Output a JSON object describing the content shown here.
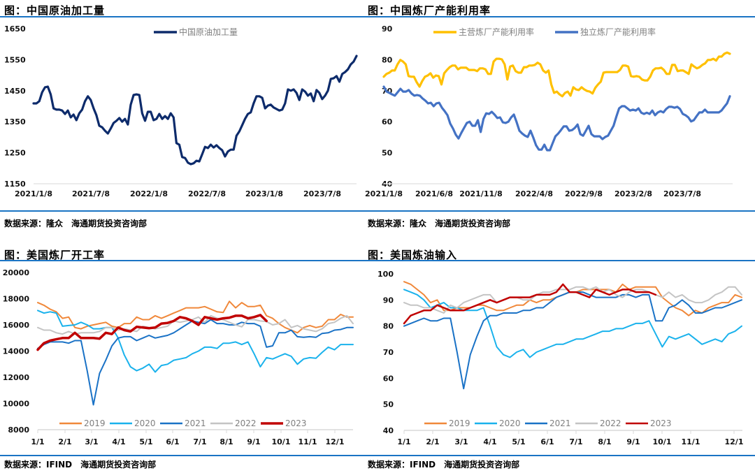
{
  "panels": [
    {
      "title": "图：中国原油加工量",
      "source": "数据来源：隆众　海通期货投资咨询部"
    },
    {
      "title": "图：中国炼厂产能利用率",
      "source": "数据来源：隆众　海通期货投资咨询部"
    },
    {
      "title": "图：美国炼厂开工率",
      "source": "数据来源：IFIND　海通期货投资咨询部"
    },
    {
      "title": "图：美国炼油输入",
      "source": "数据来源：IFIND　海通期货投资咨询部"
    }
  ],
  "chart_data": [
    {
      "type": "line",
      "title": "中国原油加工量",
      "xlabel": "",
      "ylabel": "",
      "ylim": [
        1150,
        1650
      ],
      "yticks": [
        "1650",
        "1550",
        "1450",
        "1350",
        "1250",
        "1150"
      ],
      "xticks": [
        "2021/1/8",
        "2021/7/8",
        "2022/1/8",
        "2022/7/8",
        "2023/1/8",
        "2023/7/8"
      ],
      "grid": false,
      "legend_position": "top-center",
      "series": [
        {
          "name": "中国原油加工量",
          "color": "#0d2b6b",
          "values": [
            1409,
            1409,
            1416,
            1445,
            1461,
            1463,
            1438,
            1393,
            1389,
            1389,
            1386,
            1375,
            1386,
            1364,
            1373,
            1355,
            1377,
            1389,
            1416,
            1432,
            1420,
            1393,
            1371,
            1337,
            1332,
            1321,
            1312,
            1328,
            1346,
            1353,
            1362,
            1350,
            1359,
            1341,
            1405,
            1436,
            1438,
            1436,
            1377,
            1353,
            1382,
            1382,
            1355,
            1359,
            1375,
            1359,
            1368,
            1359,
            1377,
            1364,
            1281,
            1276,
            1236,
            1233,
            1218,
            1213,
            1216,
            1224,
            1222,
            1245,
            1269,
            1265,
            1276,
            1267,
            1274,
            1265,
            1258,
            1238,
            1254,
            1260,
            1260,
            1305,
            1319,
            1339,
            1359,
            1375,
            1380,
            1409,
            1432,
            1432,
            1427,
            1393,
            1402,
            1405,
            1396,
            1391,
            1386,
            1389,
            1409,
            1454,
            1450,
            1454,
            1443,
            1420,
            1454,
            1447,
            1434,
            1441,
            1416,
            1452,
            1443,
            1423,
            1434,
            1450,
            1488,
            1490,
            1497,
            1479,
            1504,
            1510,
            1519,
            1535,
            1544,
            1562
          ]
        }
      ]
    },
    {
      "type": "line",
      "title": "中国炼厂产能利用率",
      "xlabel": "",
      "ylabel": "",
      "ylim": [
        40,
        90
      ],
      "yticks": [
        "90",
        "80",
        "70",
        "60",
        "50",
        "40"
      ],
      "xticks": [
        "2021/1/8",
        "2021/6/8",
        "2021/11/8",
        "2022/4/8",
        "2022/9/8",
        "2023/2/8",
        "2023/7/8"
      ],
      "grid": false,
      "legend_position": "top-center",
      "series": [
        {
          "name": "主营炼厂产能利用率",
          "color": "#ffc000",
          "values": [
            74.5,
            75.4,
            75.8,
            76.5,
            76.5,
            78.5,
            79.9,
            79.4,
            78.5,
            74.7,
            74.5,
            74.5,
            72.7,
            71.3,
            73.1,
            74.5,
            74.9,
            75.6,
            74.2,
            74.9,
            74.7,
            72.0,
            75.6,
            76.7,
            77.6,
            78.1,
            78.1,
            76.9,
            77.4,
            77.4,
            77.4,
            76.7,
            76.7,
            76.7,
            76.3,
            77.2,
            77.2,
            76.9,
            75.4,
            75.4,
            79.4,
            80.3,
            80.3,
            80.1,
            78.5,
            73.6,
            77.8,
            78.1,
            76.3,
            75.8,
            75.8,
            77.6,
            77.6,
            78.1,
            78.1,
            78.3,
            79.0,
            78.5,
            76.5,
            75.8,
            76.5,
            72.0,
            69.3,
            69.7,
            68.8,
            68.2,
            69.3,
            69.7,
            68.4,
            71.1,
            70.4,
            70.2,
            71.1,
            70.4,
            69.9,
            69.7,
            69.1,
            70.9,
            72.0,
            72.9,
            75.8,
            76.0,
            76.0,
            76.0,
            76.0,
            76.0,
            76.7,
            78.1,
            78.1,
            77.8,
            74.7,
            74.5,
            74.7,
            74.5,
            73.6,
            73.3,
            73.3,
            74.5,
            76.5,
            77.2,
            77.2,
            77.4,
            76.7,
            75.4,
            75.4,
            78.3,
            78.3,
            76.3,
            76.5,
            76.5,
            76.0,
            75.4,
            78.5,
            77.8,
            77.2,
            77.6,
            78.3,
            78.8,
            79.9,
            79.9,
            80.3,
            79.7,
            81.0,
            81.0,
            81.9,
            82.3,
            81.9
          ]
        },
        {
          "name": "独立炼厂产能利用率",
          "color": "#4472c4",
          "values": [
            71.3,
            69.7,
            69.3,
            68.8,
            68.4,
            69.5,
            70.6,
            69.7,
            69.7,
            70.2,
            69.1,
            68.4,
            68.6,
            68.4,
            67.5,
            66.8,
            65.9,
            66.1,
            65.0,
            65.9,
            66.1,
            64.5,
            63.4,
            62.1,
            59.4,
            57.8,
            55.8,
            54.6,
            56.4,
            58.0,
            59.6,
            60.0,
            58.7,
            58.7,
            60.5,
            56.7,
            60.9,
            62.7,
            62.5,
            63.2,
            62.3,
            61.2,
            61.4,
            59.8,
            59.6,
            60.0,
            61.4,
            62.3,
            59.8,
            57.1,
            56.2,
            55.5,
            55.1,
            57.1,
            54.9,
            52.4,
            51.0,
            51.0,
            52.6,
            50.8,
            50.8,
            53.1,
            55.3,
            56.2,
            57.3,
            58.5,
            58.5,
            57.1,
            57.3,
            58.0,
            59.1,
            56.0,
            55.5,
            57.1,
            58.7,
            56.0,
            55.3,
            55.3,
            55.3,
            54.4,
            55.1,
            55.5,
            57.1,
            58.7,
            61.6,
            64.3,
            65.0,
            65.0,
            64.3,
            63.6,
            63.9,
            63.6,
            64.3,
            62.9,
            62.5,
            62.9,
            62.5,
            63.6,
            62.1,
            63.0,
            63.4,
            63.0,
            64.1,
            64.8,
            64.8,
            64.5,
            64.8,
            64.1,
            62.5,
            62.1,
            61.4,
            60.1,
            60.5,
            61.8,
            63.0,
            63.0,
            63.9,
            63.0,
            63.0,
            63.0,
            63.0,
            63.0,
            63.6,
            64.8,
            65.9,
            68.2
          ]
        }
      ]
    },
    {
      "type": "line",
      "title": "美国炼厂开工率",
      "xlabel": "",
      "ylabel": "",
      "ylim": [
        8000,
        20000
      ],
      "yticks": [
        "20000",
        "18000",
        "16000",
        "14000",
        "12000",
        "10000",
        "8000"
      ],
      "xticks": [
        "1/1",
        "2/1",
        "3/1",
        "4/1",
        "5/1",
        "6/1",
        "7/1",
        "8/1",
        "9/1",
        "10/1",
        "11/1",
        "12/1"
      ],
      "grid": false,
      "legend_position": "bottom-center",
      "series": [
        {
          "name": "2019",
          "color": "#f0883a",
          "width": 2,
          "values": [
            17700,
            17500,
            17200,
            17000,
            16500,
            16600,
            15800,
            15700,
            15900,
            16000,
            16100,
            16200,
            15900,
            15800,
            16100,
            16100,
            16600,
            16400,
            16400,
            16700,
            16500,
            16700,
            16900,
            17100,
            17300,
            17300,
            17300,
            17400,
            17200,
            17000,
            16950,
            17800,
            17300,
            17700,
            17400,
            17400,
            17500,
            16700,
            16500,
            16100,
            15800,
            15600,
            15400,
            15800,
            15950,
            15800,
            15900,
            16400,
            16400,
            16800,
            16600,
            16600
          ]
        },
        {
          "name": "2020",
          "color": "#1ab2ec",
          "width": 2,
          "values": [
            17100,
            16900,
            17000,
            16900,
            15900,
            15950,
            16000,
            16200,
            16000,
            15700,
            15700,
            15800,
            15800,
            15000,
            13700,
            12800,
            12500,
            12700,
            13000,
            12400,
            12900,
            13000,
            13300,
            13400,
            13500,
            13800,
            14000,
            14300,
            14300,
            14200,
            14600,
            14600,
            14700,
            14500,
            14700,
            13800,
            12800,
            13500,
            13400,
            13600,
            13800,
            13600,
            13000,
            13400,
            13500,
            13450,
            13900,
            14300,
            14100,
            14500,
            14500,
            14500
          ]
        },
        {
          "name": "2021",
          "color": "#1a72c6",
          "width": 2,
          "values": [
            14200,
            14500,
            14700,
            14700,
            14700,
            14600,
            14800,
            14800,
            12500,
            9900,
            12300,
            13300,
            14400,
            15000,
            15100,
            15100,
            14800,
            15000,
            15200,
            15000,
            15100,
            15200,
            15400,
            15700,
            16000,
            16300,
            16200,
            16100,
            16400,
            16100,
            16100,
            16000,
            16000,
            16200,
            16100,
            16100,
            15900,
            14300,
            14400,
            15400,
            15400,
            15600,
            15100,
            15050,
            15100,
            15050,
            15350,
            15400,
            15600,
            15650,
            15800,
            15800
          ]
        },
        {
          "name": "2022",
          "color": "#c4c4c4",
          "width": 2,
          "values": [
            15800,
            15600,
            15600,
            15400,
            15300,
            15500,
            15300,
            15400,
            15400,
            15400,
            15500,
            15800,
            15800,
            15600,
            15700,
            15600,
            15500,
            15900,
            15800,
            15700,
            15800,
            15900,
            16300,
            16200,
            16300,
            16400,
            16600,
            16200,
            16700,
            16500,
            16400,
            16200,
            16000,
            15850,
            16400,
            16400,
            16300,
            16250,
            16000,
            16100,
            16400,
            15800,
            15950,
            15700,
            15600,
            15500,
            15700,
            16100,
            16200,
            16500,
            16700,
            16100
          ]
        },
        {
          "name": "2023",
          "color": "#c00000",
          "width": 3.5,
          "values": [
            14100,
            14600,
            14800,
            14900,
            15000,
            15000,
            15400,
            15000,
            15000,
            15000,
            14950,
            15400,
            15300,
            15800,
            15600,
            15500,
            15850,
            15800,
            15750,
            15800,
            16100,
            16150,
            16300,
            16600,
            16500,
            16300,
            16000,
            16600,
            16500,
            16400,
            16500,
            16550,
            16700,
            16700,
            16500,
            16600,
            16750,
            16300
          ]
        }
      ]
    },
    {
      "type": "line",
      "title": "美国炼油输入",
      "xlabel": "",
      "ylabel": "",
      "ylim": [
        40,
        100
      ],
      "yticks": [
        "100",
        "90",
        "80",
        "70",
        "60",
        "50",
        "40"
      ],
      "xticks": [
        "1/1",
        "2/1",
        "3/1",
        "4/1",
        "5/1",
        "6/1",
        "7/1",
        "8/1",
        "9/1",
        "10/1",
        "11/1",
        "12/1"
      ],
      "grid": false,
      "legend_position": "bottom-center",
      "series": [
        {
          "name": "2019",
          "color": "#f0883a",
          "width": 2,
          "values": [
            97,
            96,
            94,
            92,
            89,
            90,
            86,
            86,
            87,
            87,
            87,
            88,
            88,
            87,
            86,
            86,
            87,
            88,
            88,
            90,
            89,
            90,
            90,
            91,
            92,
            93,
            93,
            94,
            94,
            94,
            94,
            94,
            93,
            96,
            94,
            95,
            95,
            95,
            95,
            91,
            89,
            87,
            86,
            84,
            86,
            85,
            87,
            88,
            89,
            89,
            92,
            91
          ]
        },
        {
          "name": "2020",
          "color": "#1ab2ec",
          "width": 2,
          "values": [
            94,
            93,
            92,
            90,
            87,
            88,
            89,
            87,
            87,
            86,
            86,
            86,
            87,
            80,
            72,
            69,
            68,
            70,
            71,
            68,
            70,
            71,
            72,
            73,
            73,
            74,
            75,
            75,
            76,
            77,
            78,
            78,
            79,
            79,
            80,
            81,
            81,
            82,
            77,
            72,
            76,
            75,
            76,
            77,
            75,
            73,
            74,
            75,
            74,
            77,
            78,
            80
          ]
        },
        {
          "name": "2021",
          "color": "#1a72c6",
          "width": 2,
          "values": [
            80,
            81,
            82,
            83,
            82,
            82,
            83,
            83,
            70,
            56,
            69,
            76,
            82,
            84,
            84,
            85,
            85,
            85,
            86,
            86,
            87,
            87,
            89,
            91,
            92,
            93,
            93,
            93,
            92,
            91,
            91,
            91,
            91,
            92,
            92,
            91,
            92,
            92,
            82,
            82,
            87,
            88,
            90,
            88,
            85,
            85,
            86,
            87,
            87,
            88,
            89,
            90
          ]
        },
        {
          "name": "2022",
          "color": "#c4c4c4",
          "width": 2,
          "values": [
            89,
            88,
            88,
            87,
            87,
            86,
            85,
            88,
            87,
            89,
            90,
            91,
            92,
            92,
            89,
            90,
            91,
            91,
            90,
            90,
            92,
            93,
            93,
            94,
            94,
            94,
            95,
            95,
            94,
            95,
            93,
            94,
            92,
            91,
            93,
            94,
            94,
            93,
            92,
            91,
            93,
            91,
            92,
            90,
            89,
            89,
            90,
            92,
            93,
            95,
            95,
            92
          ]
        },
        {
          "name": "2023",
          "color": "#c00000",
          "width": 2.5,
          "values": [
            81,
            84,
            85,
            86,
            86,
            88,
            87,
            86,
            86,
            86,
            87,
            88,
            89,
            90,
            89,
            90,
            91,
            91,
            91,
            91,
            92,
            92,
            92,
            93,
            96,
            93,
            93,
            92,
            91,
            94,
            93,
            92,
            93,
            94,
            94,
            93,
            93,
            93,
            92
          ]
        }
      ]
    }
  ]
}
